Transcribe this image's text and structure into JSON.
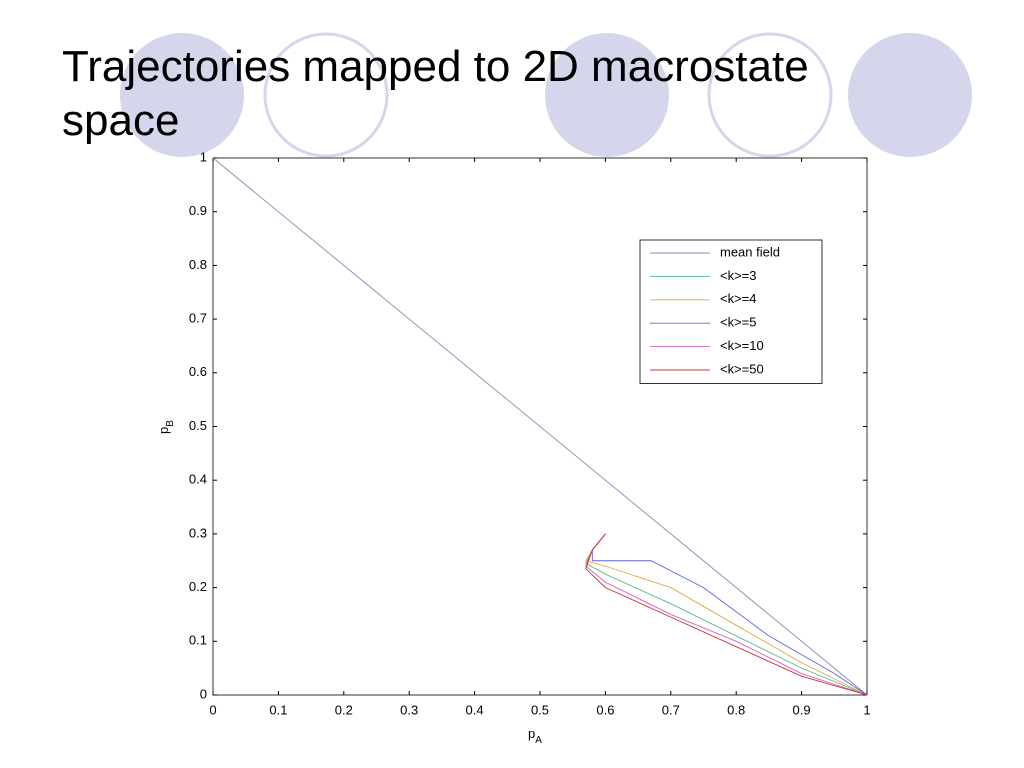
{
  "chart_data": {
    "type": "line",
    "title": "Trajectories mapped to 2D macrostate space",
    "xlabel": "p",
    "xlabel_sub": "A",
    "ylabel": "p",
    "ylabel_sub": "B",
    "xlim": [
      0,
      1
    ],
    "ylim": [
      0,
      1
    ],
    "xticks": [
      0,
      0.1,
      0.2,
      0.3,
      0.4,
      0.5,
      0.6,
      0.7,
      0.8,
      0.9,
      1
    ],
    "yticks": [
      0,
      0.1,
      0.2,
      0.3,
      0.4,
      0.5,
      0.6,
      0.7,
      0.8,
      0.9,
      1
    ],
    "legend": "upper right",
    "series": [
      {
        "name": "mean field",
        "color": "#8a8ab0",
        "x": [
          0,
          1
        ],
        "values": [
          1,
          0
        ]
      },
      {
        "name": "<k>=3",
        "color": "#55bb88",
        "x": [
          0.6,
          0.58,
          0.57,
          0.6,
          0.7,
          0.8,
          0.9,
          1
        ],
        "values": [
          0.3,
          0.27,
          0.245,
          0.225,
          0.17,
          0.11,
          0.05,
          0
        ]
      },
      {
        "name": "<k>=4",
        "color": "#e0a840",
        "x": [
          0.6,
          0.58,
          0.57,
          0.6,
          0.7,
          0.8,
          0.9,
          1
        ],
        "values": [
          0.3,
          0.27,
          0.25,
          0.24,
          0.2,
          0.13,
          0.06,
          0
        ]
      },
      {
        "name": "<k>=5",
        "color": "#6060e8",
        "x": [
          0.6,
          0.58,
          0.58,
          0.67,
          0.75,
          0.85,
          0.95,
          1
        ],
        "values": [
          0.3,
          0.27,
          0.25,
          0.25,
          0.2,
          0.11,
          0.04,
          0
        ]
      },
      {
        "name": "<k>=10",
        "color": "#d860b8",
        "x": [
          0.6,
          0.58,
          0.57,
          0.6,
          0.7,
          0.8,
          0.9,
          1
        ],
        "values": [
          0.3,
          0.27,
          0.24,
          0.21,
          0.15,
          0.1,
          0.04,
          0
        ]
      },
      {
        "name": "<k>=50",
        "color": "#cc2f2f",
        "x": [
          0.6,
          0.58,
          0.57,
          0.6,
          0.7,
          0.8,
          0.9,
          1
        ],
        "values": [
          0.3,
          0.27,
          0.235,
          0.2,
          0.145,
          0.09,
          0.035,
          0
        ]
      }
    ]
  }
}
